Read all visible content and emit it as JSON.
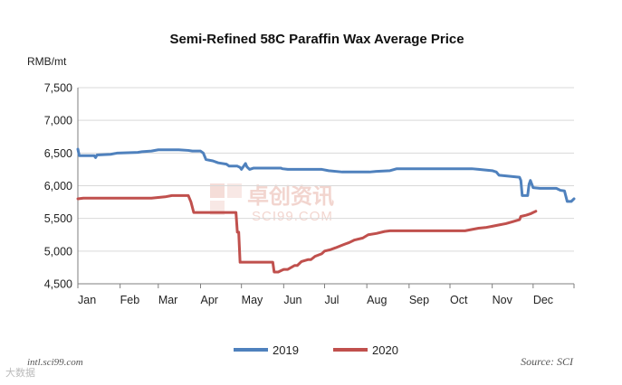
{
  "colors": {
    "series_2019": "#4f81bd",
    "series_2020": "#c0504d",
    "grid": "#d9d9d9",
    "axis": "#7f7f7f",
    "watermark": "#e8b4a8"
  },
  "watermark": {
    "cn": "卓创资讯",
    "en": "SCI99.COM"
  },
  "footer": {
    "left": "intl.sci99.com",
    "right": "Source: SCI"
  },
  "corner_mark": "大数据",
  "chart_data": {
    "type": "line",
    "title": "Semi-Refined 58C Paraffin Wax Average Price",
    "ylabel": "RMB/mt",
    "xlabel": "",
    "ylim": [
      4500,
      7500
    ],
    "yticks": [
      4500,
      5000,
      5500,
      6000,
      6500,
      7000,
      7500
    ],
    "ytick_labels": [
      "4,500",
      "5,000",
      "5,500",
      "6,000",
      "6,500",
      "7,000",
      "7,500"
    ],
    "xlim": [
      1,
      365
    ],
    "month_labels": [
      "Jan",
      "Feb",
      "Mar",
      "Apr",
      "May",
      "Jun",
      "Jul",
      "Aug",
      "Sep",
      "Oct",
      "Nov",
      "Dec"
    ],
    "month_days": [
      1,
      32,
      60,
      91,
      121,
      152,
      182,
      213,
      244,
      274,
      305,
      335
    ],
    "grid": true,
    "legend_position": "bottom",
    "series": [
      {
        "name": "2019",
        "x": [
          1,
          2,
          3,
          13,
          14,
          15,
          25,
          30,
          45,
          48,
          55,
          60,
          65,
          70,
          75,
          82,
          85,
          88,
          91,
          93,
          95,
          100,
          104,
          110,
          112,
          115,
          118,
          120,
          121,
          124,
          125,
          127,
          130,
          140,
          150,
          151,
          155,
          160,
          170,
          175,
          180,
          185,
          195,
          200,
          205,
          210,
          215,
          220,
          230,
          235,
          240,
          250,
          260,
          270,
          280,
          290,
          295,
          300,
          305,
          308,
          310,
          315,
          320,
          325,
          326,
          327,
          330,
          331,
          332,
          333,
          335,
          340,
          345,
          350,
          352,
          355,
          358,
          360,
          363,
          365
        ],
        "values": [
          6560,
          6460,
          6460,
          6460,
          6430,
          6470,
          6480,
          6500,
          6510,
          6520,
          6530,
          6550,
          6550,
          6550,
          6550,
          6540,
          6530,
          6530,
          6530,
          6500,
          6400,
          6380,
          6350,
          6330,
          6300,
          6300,
          6300,
          6280,
          6250,
          6340,
          6290,
          6250,
          6270,
          6270,
          6270,
          6260,
          6250,
          6250,
          6250,
          6250,
          6250,
          6230,
          6210,
          6210,
          6210,
          6210,
          6210,
          6220,
          6230,
          6260,
          6260,
          6260,
          6260,
          6260,
          6260,
          6260,
          6250,
          6240,
          6230,
          6210,
          6160,
          6150,
          6140,
          6130,
          6080,
          5850,
          5850,
          5850,
          6020,
          6080,
          5970,
          5960,
          5960,
          5960,
          5960,
          5930,
          5920,
          5760,
          5760,
          5800
        ]
      },
      {
        "name": "2020",
        "x": [
          1,
          5,
          20,
          40,
          55,
          60,
          65,
          70,
          75,
          80,
          82,
          84,
          86,
          90,
          100,
          110,
          115,
          116,
          117,
          118,
          119,
          120,
          130,
          140,
          144,
          145,
          148,
          150,
          152,
          155,
          160,
          162,
          165,
          170,
          172,
          175,
          180,
          182,
          186,
          190,
          196,
          200,
          204,
          210,
          214,
          220,
          226,
          230,
          240,
          250,
          260,
          270,
          282,
          285,
          295,
          300,
          305,
          310,
          315,
          320,
          325,
          326,
          330,
          333,
          335,
          336,
          337
        ],
        "values": [
          5800,
          5810,
          5810,
          5810,
          5810,
          5820,
          5830,
          5850,
          5850,
          5850,
          5850,
          5750,
          5590,
          5590,
          5590,
          5590,
          5590,
          5590,
          5590,
          5290,
          5290,
          4830,
          4830,
          4830,
          4830,
          4680,
          4680,
          4700,
          4720,
          4720,
          4780,
          4780,
          4840,
          4870,
          4870,
          4920,
          4960,
          5000,
          5020,
          5050,
          5100,
          5130,
          5170,
          5200,
          5250,
          5270,
          5300,
          5310,
          5310,
          5310,
          5310,
          5310,
          5310,
          5310,
          5350,
          5360,
          5380,
          5400,
          5420,
          5450,
          5480,
          5530,
          5550,
          5570,
          5590,
          5600,
          5610
        ]
      }
    ]
  }
}
